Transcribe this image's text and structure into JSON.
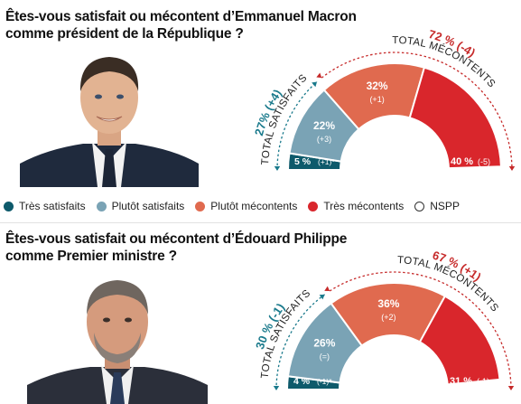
{
  "colors": {
    "tres_satisfaits": "#0e5a6b",
    "plutot_satisfaits": "#7aa3b5",
    "plutot_mecontents": "#e06a4f",
    "tres_mecontents": "#d9262c",
    "total_satisfaits_text": "#1a7a8c",
    "total_mecontents_text": "#c62a2a"
  },
  "legend": {
    "items": [
      {
        "label": "Très satisfaits",
        "color": "#0e5a6b",
        "hollow": false
      },
      {
        "label": "Plutôt satisfaits",
        "color": "#7aa3b5",
        "hollow": false
      },
      {
        "label": "Plutôt mécontents",
        "color": "#e06a4f",
        "hollow": false
      },
      {
        "label": "Très mécontents",
        "color": "#d9262c",
        "hollow": false
      },
      {
        "label": "NSPP",
        "color": "#333333",
        "hollow": true
      }
    ]
  },
  "polls": [
    {
      "question_line1": "Êtes-vous satisfait ou mécontent d’Emmanuel Macron",
      "question_line2": "comme président de la République ?",
      "portrait": "emmanuel-macron-photo"
    },
    {
      "question_line1": "Êtes-vous satisfait ou mécontent d’Édouard Philippe",
      "question_line2": "comme Premier ministre ?",
      "portrait": "edouard-philippe-photo"
    }
  ],
  "chart_data": [
    {
      "type": "pie",
      "categories": [
        "Très satisfaits",
        "Plutôt satisfaits",
        "Plutôt mécontents",
        "Très mécontents"
      ],
      "values": [
        5,
        22,
        32,
        40
      ],
      "changes": [
        "(+1)*",
        "(+3)",
        "(+1)",
        "(-5)"
      ],
      "value_labels": [
        "5 %",
        "22%",
        "32%",
        "40 %"
      ],
      "total_satisfaits": {
        "value": "27%",
        "change": "(+4)",
        "label": "TOTAL SATISFAITS"
      },
      "total_mecontents": {
        "value": "72 %",
        "change": "(-4)",
        "label": "TOTAL MÉCONTENTS"
      }
    },
    {
      "type": "pie",
      "categories": [
        "Très satisfaits",
        "Plutôt satisfaits",
        "Plutôt mécontents",
        "Très mécontents"
      ],
      "values": [
        4,
        26,
        36,
        31
      ],
      "changes": [
        "(-1)*",
        "(=)",
        "(+2)",
        "(-1)"
      ],
      "value_labels": [
        "4 %",
        "26%",
        "36%",
        "31 %"
      ],
      "total_satisfaits": {
        "value": "30 %",
        "change": "(-1)",
        "label": "TOTAL SATISFAITS"
      },
      "total_mecontents": {
        "value": "67 %",
        "change": "(+1)",
        "label": "TOTAL MÉCONTENTS"
      }
    }
  ]
}
